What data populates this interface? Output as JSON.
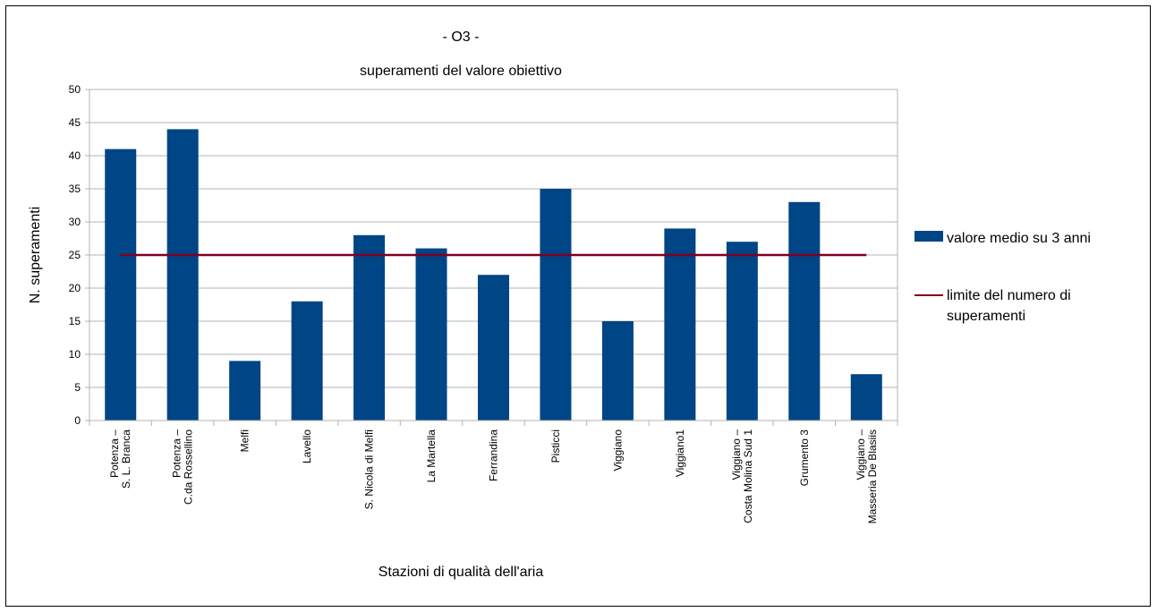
{
  "chart_data": {
    "type": "bar",
    "title": "- O3 -",
    "subtitle": "superamenti del valore obiettivo",
    "xlabel": "Stazioni di qualità dell'aria",
    "ylabel": "N. superamenti",
    "ylim": [
      0,
      50
    ],
    "yticks": [
      0,
      5,
      10,
      15,
      20,
      25,
      30,
      35,
      40,
      45,
      50
    ],
    "grid": true,
    "legend_position": "right",
    "categories": [
      [
        "Potenza –",
        "S. L. Branca"
      ],
      [
        "Potenza –",
        "C.da Rossellino"
      ],
      [
        "Melfi"
      ],
      [
        "Lavello"
      ],
      [
        "S. Nicola di Melfi"
      ],
      [
        "La Martella"
      ],
      [
        "Ferrandina"
      ],
      [
        "Pisticci"
      ],
      [
        "Viggiano"
      ],
      [
        "Viggiano1"
      ],
      [
        "Viggiano –",
        "Costa Molina Sud 1"
      ],
      [
        "Grumento 3"
      ],
      [
        "Viggiano –",
        "Masseria De Blasiis"
      ]
    ],
    "series": [
      {
        "name": "valore medio su 3 anni",
        "kind": "bar",
        "color": "#004586",
        "values": [
          41,
          44,
          9,
          18,
          28,
          26,
          22,
          35,
          15,
          29,
          27,
          33,
          7
        ]
      },
      {
        "name": "limite del numero di superamenti",
        "kind": "line",
        "color": "#7e0021",
        "values": [
          25,
          25,
          25,
          25,
          25,
          25,
          25,
          25,
          25,
          25,
          25,
          25,
          25
        ]
      }
    ]
  }
}
